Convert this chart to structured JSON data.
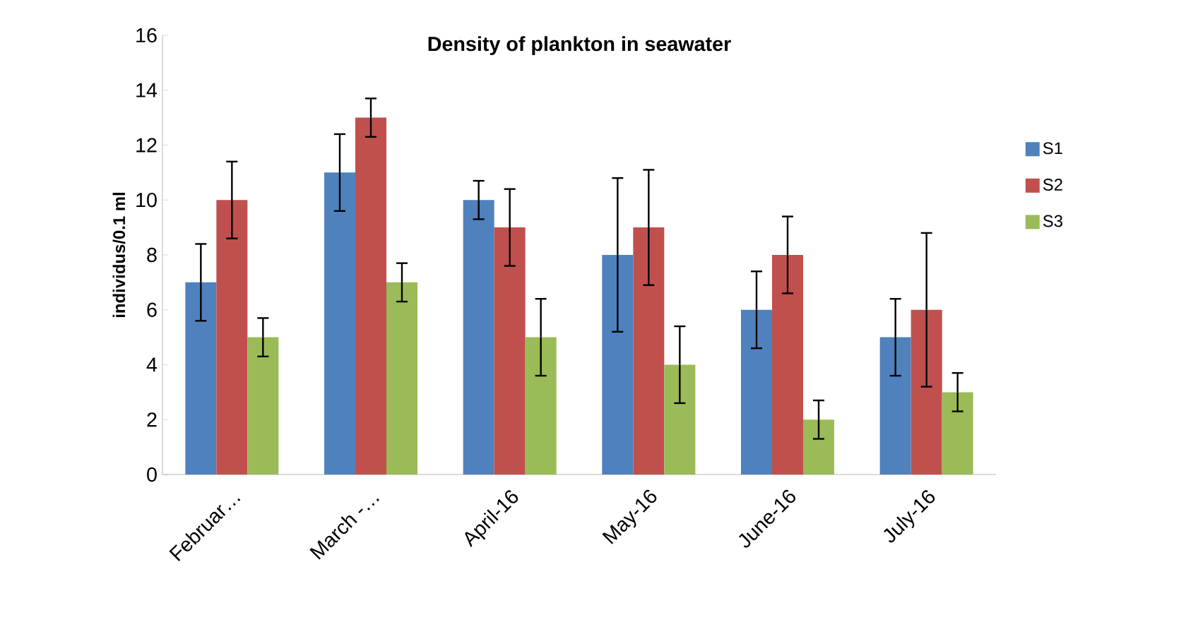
{
  "chart_data": {
    "type": "bar",
    "title": "Density of plankton in seawater",
    "ylabel": "individus/0.1 ml",
    "categories": [
      "Februar…",
      "March -…",
      "April-16",
      "May-16",
      "June-16",
      "July-16"
    ],
    "series": [
      {
        "name": "S1",
        "color": "#4f81bd",
        "values": [
          7,
          11,
          10,
          8,
          6,
          5
        ],
        "errors": [
          1.4,
          1.4,
          0.7,
          2.8,
          1.4,
          1.4
        ]
      },
      {
        "name": "S2",
        "color": "#c0504d",
        "values": [
          10,
          13,
          9,
          9,
          8,
          6
        ],
        "errors": [
          1.4,
          0.7,
          1.4,
          2.1,
          1.4,
          2.8
        ]
      },
      {
        "name": "S3",
        "color": "#9bbb59",
        "values": [
          5,
          7,
          5,
          4,
          2,
          3
        ],
        "errors": [
          0.7,
          0.7,
          1.4,
          1.4,
          0.7,
          0.7
        ]
      }
    ],
    "ylim": [
      0,
      16
    ],
    "yticks": [
      0,
      2,
      4,
      6,
      8,
      10,
      12,
      14,
      16
    ],
    "grid": false,
    "legend": "right"
  }
}
